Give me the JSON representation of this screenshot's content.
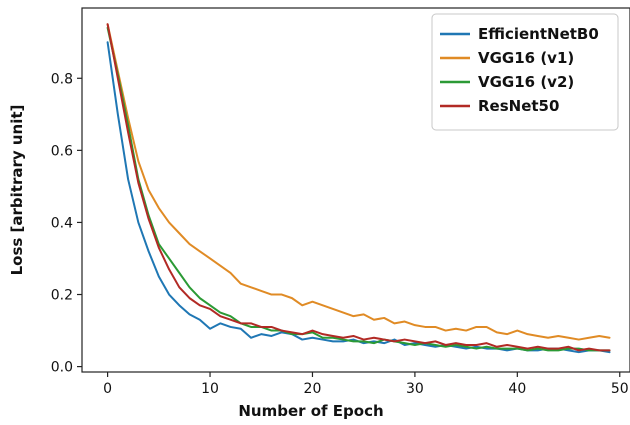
{
  "chart_data": {
    "type": "line",
    "xlabel": "Number of Epoch",
    "ylabel": "Loss [arbitrary unit]",
    "xlim": [
      -2.5,
      51
    ],
    "ylim": [
      -0.015,
      0.995
    ],
    "xticks": [
      0,
      10,
      20,
      30,
      40,
      50
    ],
    "yticks": [
      0.0,
      0.2,
      0.4,
      0.6,
      0.8
    ],
    "ytick_labels": [
      "0.0",
      "0.2",
      "0.4",
      "0.6",
      "0.8"
    ],
    "grid": false,
    "legend_position": "top-right",
    "x": [
      0,
      1,
      2,
      3,
      4,
      5,
      6,
      7,
      8,
      9,
      10,
      11,
      12,
      13,
      14,
      15,
      16,
      17,
      18,
      19,
      20,
      21,
      22,
      23,
      24,
      25,
      26,
      27,
      28,
      29,
      30,
      31,
      32,
      33,
      34,
      35,
      36,
      37,
      38,
      39,
      40,
      41,
      42,
      43,
      44,
      45,
      46,
      47,
      48,
      49
    ],
    "series": [
      {
        "name": "EfficientNetB0",
        "color": "#1f77b4",
        "values": [
          0.9,
          0.7,
          0.52,
          0.4,
          0.32,
          0.25,
          0.2,
          0.17,
          0.145,
          0.13,
          0.105,
          0.12,
          0.11,
          0.105,
          0.08,
          0.09,
          0.085,
          0.095,
          0.09,
          0.075,
          0.08,
          0.075,
          0.07,
          0.07,
          0.075,
          0.065,
          0.07,
          0.065,
          0.075,
          0.06,
          0.065,
          0.06,
          0.055,
          0.06,
          0.055,
          0.05,
          0.055,
          0.05,
          0.05,
          0.045,
          0.05,
          0.045,
          0.045,
          0.05,
          0.05,
          0.045,
          0.04,
          0.045,
          0.045,
          0.04
        ]
      },
      {
        "name": "VGG16 (v1)",
        "color": "#e08b25",
        "values": [
          0.95,
          0.82,
          0.69,
          0.57,
          0.49,
          0.44,
          0.4,
          0.37,
          0.34,
          0.32,
          0.3,
          0.28,
          0.26,
          0.23,
          0.22,
          0.21,
          0.2,
          0.2,
          0.19,
          0.17,
          0.18,
          0.17,
          0.16,
          0.15,
          0.14,
          0.145,
          0.13,
          0.135,
          0.12,
          0.125,
          0.115,
          0.11,
          0.11,
          0.1,
          0.105,
          0.1,
          0.11,
          0.11,
          0.095,
          0.09,
          0.1,
          0.09,
          0.085,
          0.08,
          0.085,
          0.08,
          0.075,
          0.08,
          0.085,
          0.08
        ]
      },
      {
        "name": "VGG16 (v2)",
        "color": "#2b9a35",
        "values": [
          0.94,
          0.81,
          0.67,
          0.52,
          0.42,
          0.34,
          0.3,
          0.26,
          0.22,
          0.19,
          0.17,
          0.15,
          0.14,
          0.12,
          0.11,
          0.11,
          0.1,
          0.1,
          0.09,
          0.09,
          0.095,
          0.08,
          0.08,
          0.075,
          0.07,
          0.07,
          0.065,
          0.075,
          0.07,
          0.065,
          0.06,
          0.065,
          0.06,
          0.055,
          0.06,
          0.055,
          0.05,
          0.055,
          0.05,
          0.05,
          0.05,
          0.045,
          0.05,
          0.045,
          0.045,
          0.05,
          0.05,
          0.045,
          0.045,
          0.045
        ]
      },
      {
        "name": "ResNet50",
        "color": "#b22a25",
        "values": [
          0.95,
          0.8,
          0.65,
          0.51,
          0.41,
          0.33,
          0.27,
          0.22,
          0.19,
          0.17,
          0.16,
          0.14,
          0.13,
          0.12,
          0.12,
          0.11,
          0.11,
          0.1,
          0.095,
          0.09,
          0.1,
          0.09,
          0.085,
          0.08,
          0.085,
          0.075,
          0.08,
          0.075,
          0.07,
          0.075,
          0.07,
          0.065,
          0.07,
          0.06,
          0.065,
          0.06,
          0.06,
          0.065,
          0.055,
          0.06,
          0.055,
          0.05,
          0.055,
          0.05,
          0.05,
          0.055,
          0.045,
          0.05,
          0.045,
          0.045
        ]
      }
    ]
  }
}
